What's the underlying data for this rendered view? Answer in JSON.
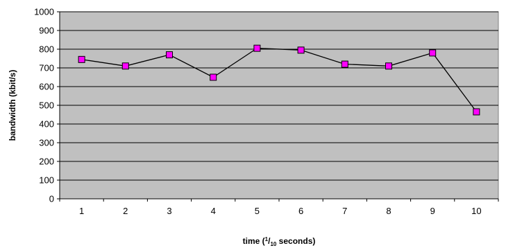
{
  "chart_data": {
    "type": "line",
    "x": [
      1,
      2,
      3,
      4,
      5,
      6,
      7,
      8,
      9,
      10
    ],
    "categories": [
      "1",
      "2",
      "3",
      "4",
      "5",
      "6",
      "7",
      "8",
      "9",
      "10"
    ],
    "series": [
      {
        "values": [
          745,
          710,
          770,
          650,
          805,
          795,
          720,
          710,
          780,
          465
        ]
      }
    ],
    "ylim": [
      0,
      1000
    ],
    "yticks": [
      0,
      100,
      200,
      300,
      400,
      500,
      600,
      700,
      800,
      900,
      1000
    ],
    "ylabel": "bandwidth (kbit/s)",
    "xlabel": {
      "prefix": "time (",
      "numerator": "1",
      "slash": "/",
      "denominator": "10",
      "suffix": " seconds)"
    },
    "grid": true,
    "legend": "none",
    "colors": {
      "plot_background": "#c0c0c0",
      "gridline": "#000000",
      "line": "#000000",
      "marker_fill": "#ff00ff",
      "marker_stroke": "#000000"
    }
  }
}
